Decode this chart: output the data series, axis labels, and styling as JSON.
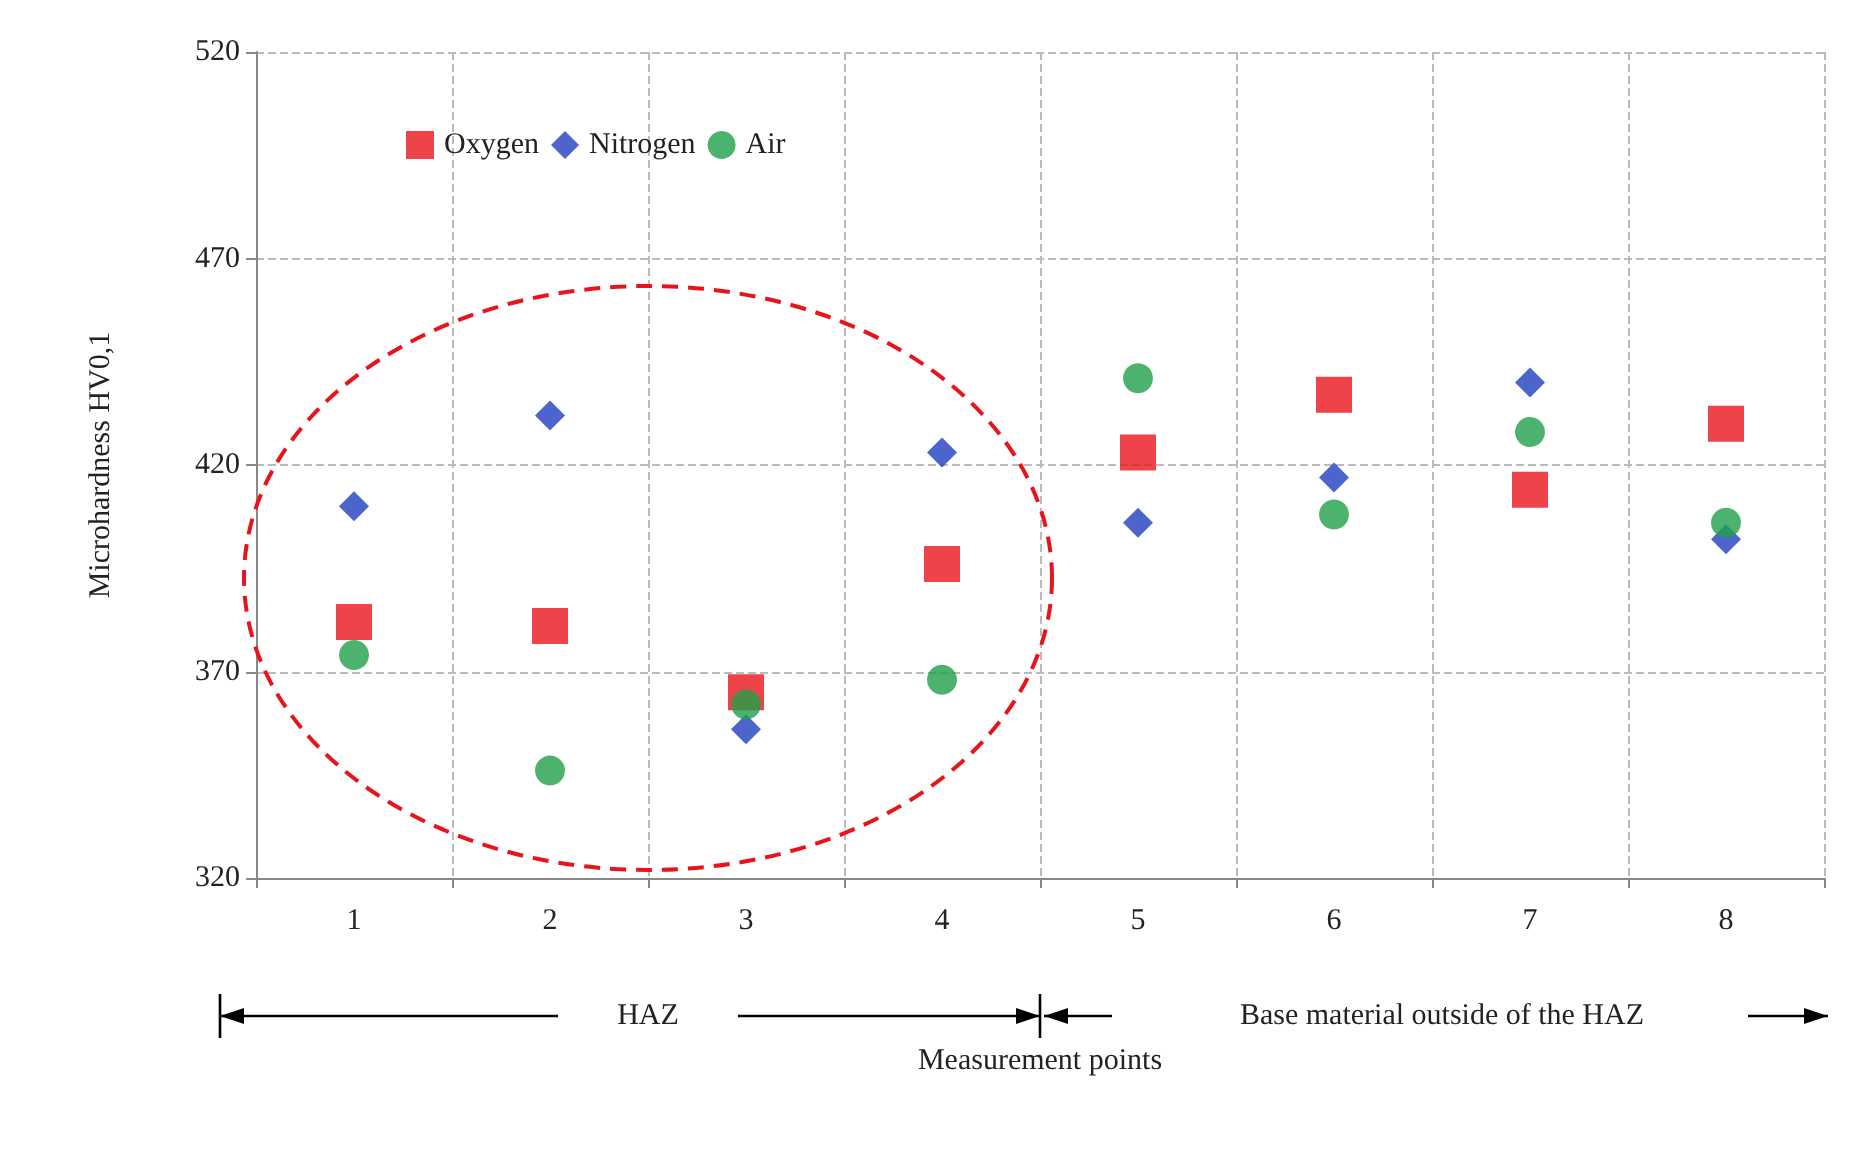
{
  "chart_data": {
    "type": "scatter",
    "xlabel": "Measurement points",
    "ylabel": "Microhardness HV0,1",
    "categories": [
      "1",
      "2",
      "3",
      "4",
      "5",
      "6",
      "7",
      "8"
    ],
    "series": [
      {
        "name": "Oxygen",
        "color": "#e8141b",
        "marker": "square",
        "values": [
          382,
          381,
          365,
          396,
          423,
          437,
          414,
          430
        ]
      },
      {
        "name": "Nitrogen",
        "color": "#1f3fbf",
        "marker": "diamond",
        "values": [
          410,
          432,
          356,
          423,
          406,
          417,
          440,
          402
        ]
      },
      {
        "name": "Air",
        "color": "#1ea04a",
        "marker": "circle",
        "values": [
          374,
          346,
          362,
          368,
          441,
          408,
          428,
          406
        ]
      }
    ],
    "ylim": [
      320,
      520
    ],
    "yticks": [
      320,
      370,
      420,
      470,
      520
    ],
    "grid": true,
    "legend": "top left",
    "annotations": [
      "HAZ",
      "Base material outside of the HAZ"
    ]
  }
}
